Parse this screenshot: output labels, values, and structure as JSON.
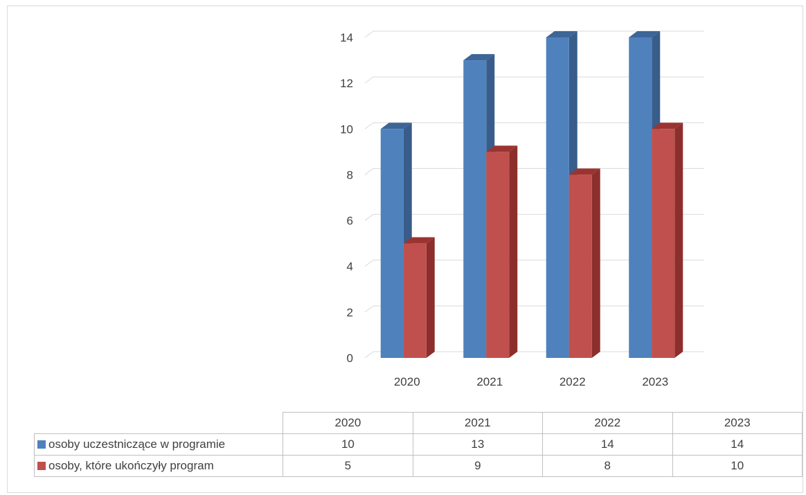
{
  "caption": "",
  "colors": {
    "series1": "#4f81bd",
    "series1_dark": "#385d8a",
    "series1_top": "#3d6596",
    "series2": "#c0504d",
    "series2_dark": "#8c2f2c",
    "series2_top": "#9b3431",
    "grid": "#d9d9d9",
    "text": "#404040"
  },
  "chart_data": {
    "type": "bar",
    "categories": [
      "2020",
      "2021",
      "2022",
      "2023"
    ],
    "series": [
      {
        "name": "osoby uczestniczące w programie",
        "values": [
          10,
          13,
          14,
          14
        ]
      },
      {
        "name": "osoby, które ukończyły program",
        "values": [
          5,
          9,
          8,
          10
        ]
      }
    ],
    "ylim": [
      0,
      14
    ],
    "yticks": [
      "0",
      "2",
      "4",
      "6",
      "8",
      "10",
      "12",
      "14"
    ],
    "grid": true,
    "legend": "data-table-below"
  },
  "table": {
    "headers": [
      "2020",
      "2021",
      "2022",
      "2023"
    ],
    "rows": [
      {
        "label": "osoby uczestniczące w programie",
        "values": [
          "10",
          "13",
          "14",
          "14"
        ]
      },
      {
        "label": "osoby, które ukończyły program",
        "values": [
          "5",
          "9",
          "8",
          "10"
        ]
      }
    ]
  }
}
